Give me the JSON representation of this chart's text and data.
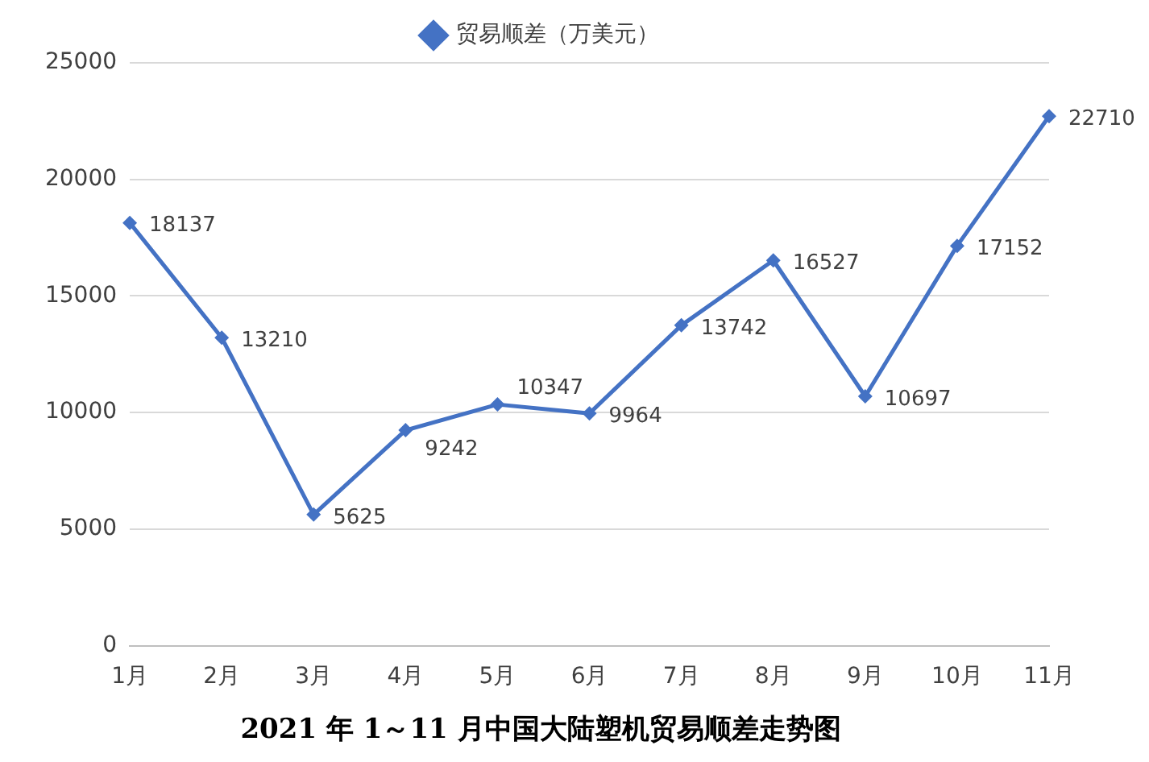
{
  "chart_data": {
    "type": "line",
    "title": "2021 年 1～11 月中国大陆塑机贸易顺差走势图",
    "categories": [
      "1月",
      "2月",
      "3月",
      "4月",
      "5月",
      "6月",
      "7月",
      "8月",
      "9月",
      "10月",
      "11月"
    ],
    "series": [
      {
        "name": "贸易顺差（万美元）",
        "color": "#4472c4",
        "values": [
          18137,
          13210,
          5625,
          9242,
          10347,
          9964,
          13742,
          16527,
          10697,
          17152,
          22710
        ]
      }
    ],
    "ylim": [
      0,
      25000
    ],
    "yticks": [
      0,
      5000,
      10000,
      15000,
      20000,
      25000
    ],
    "grid": "y",
    "legend": "top",
    "marker": "diamond",
    "line_style": "solid",
    "data_labels": true
  }
}
